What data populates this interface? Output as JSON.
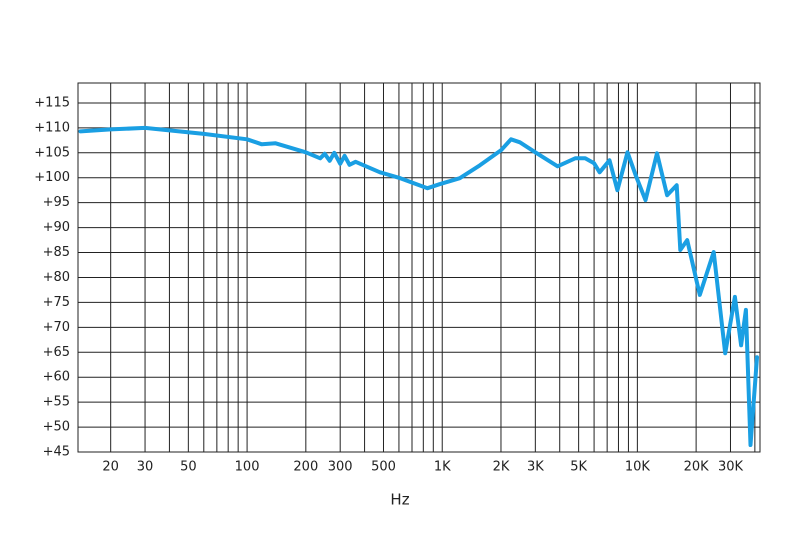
{
  "chart_data": {
    "type": "line",
    "x_label": "Hz",
    "log_x": true,
    "xlim": [
      13.6,
      42500
    ],
    "ylim": [
      45,
      119
    ],
    "xticks": [
      20,
      30,
      50,
      100,
      200,
      300,
      500,
      {
        "value": 1000,
        "label": "1K"
      },
      {
        "value": 2000,
        "label": "2K"
      },
      {
        "value": 3000,
        "label": "3K"
      },
      {
        "value": 5000,
        "label": "5K"
      },
      {
        "value": 10000,
        "label": "10K"
      },
      {
        "value": 20000,
        "label": "20K"
      },
      {
        "value": 30000,
        "label": "30K"
      }
    ],
    "x_minor_grid": [
      40,
      60,
      70,
      80,
      90,
      400,
      600,
      700,
      800,
      900,
      4000,
      6000,
      7000,
      8000,
      9000,
      40000
    ],
    "yticks": [
      {
        "value": 45,
        "label": "+45"
      },
      {
        "value": 50,
        "label": "+50"
      },
      {
        "value": 55,
        "label": "+55"
      },
      {
        "value": 60,
        "label": "+60"
      },
      {
        "value": 65,
        "label": "+65"
      },
      {
        "value": 70,
        "label": "+70"
      },
      {
        "value": 75,
        "label": "+75"
      },
      {
        "value": 80,
        "label": "+80"
      },
      {
        "value": 85,
        "label": "+85"
      },
      {
        "value": 90,
        "label": "+90"
      },
      {
        "value": 95,
        "label": "+95"
      },
      {
        "value": 100,
        "label": "+100"
      },
      {
        "value": 105,
        "label": "+105"
      },
      {
        "value": 110,
        "label": "+110"
      },
      {
        "value": 115,
        "label": "+115"
      }
    ],
    "grid": true,
    "series": [
      {
        "color": "#1a9fe3",
        "x": [
          14,
          20,
          30,
          40,
          60,
          100,
          119,
          140,
          200,
          237,
          250,
          265,
          280,
          300,
          316,
          335,
          360,
          480,
          610,
          840,
          970,
          1230,
          1560,
          2000,
          2250,
          2500,
          3000,
          3900,
          4800,
          5400,
          6000,
          6400,
          7200,
          7900,
          8900,
          9800,
          11000,
          12600,
          14200,
          15900,
          16600,
          18000,
          20900,
          24600,
          28200,
          31600,
          34000,
          36000,
          38000,
          41000
        ],
        "values": [
          109.3,
          109.7,
          110,
          109.5,
          108.8,
          107.7,
          106.7,
          106.9,
          105.1,
          103.9,
          104.8,
          103.4,
          105,
          102.8,
          104.4,
          102.6,
          103.2,
          101.1,
          99.9,
          97.9,
          98.7,
          99.9,
          102.5,
          105.5,
          107.7,
          107.1,
          105.1,
          102.3,
          103.9,
          103.9,
          102.9,
          101.1,
          103.5,
          97.5,
          105.1,
          100.5,
          95.5,
          104.9,
          96.5,
          98.5,
          85.5,
          87.5,
          76.5,
          85.1,
          64.8,
          76.1,
          66.4,
          73.5,
          46.4,
          64
        ]
      }
    ]
  }
}
